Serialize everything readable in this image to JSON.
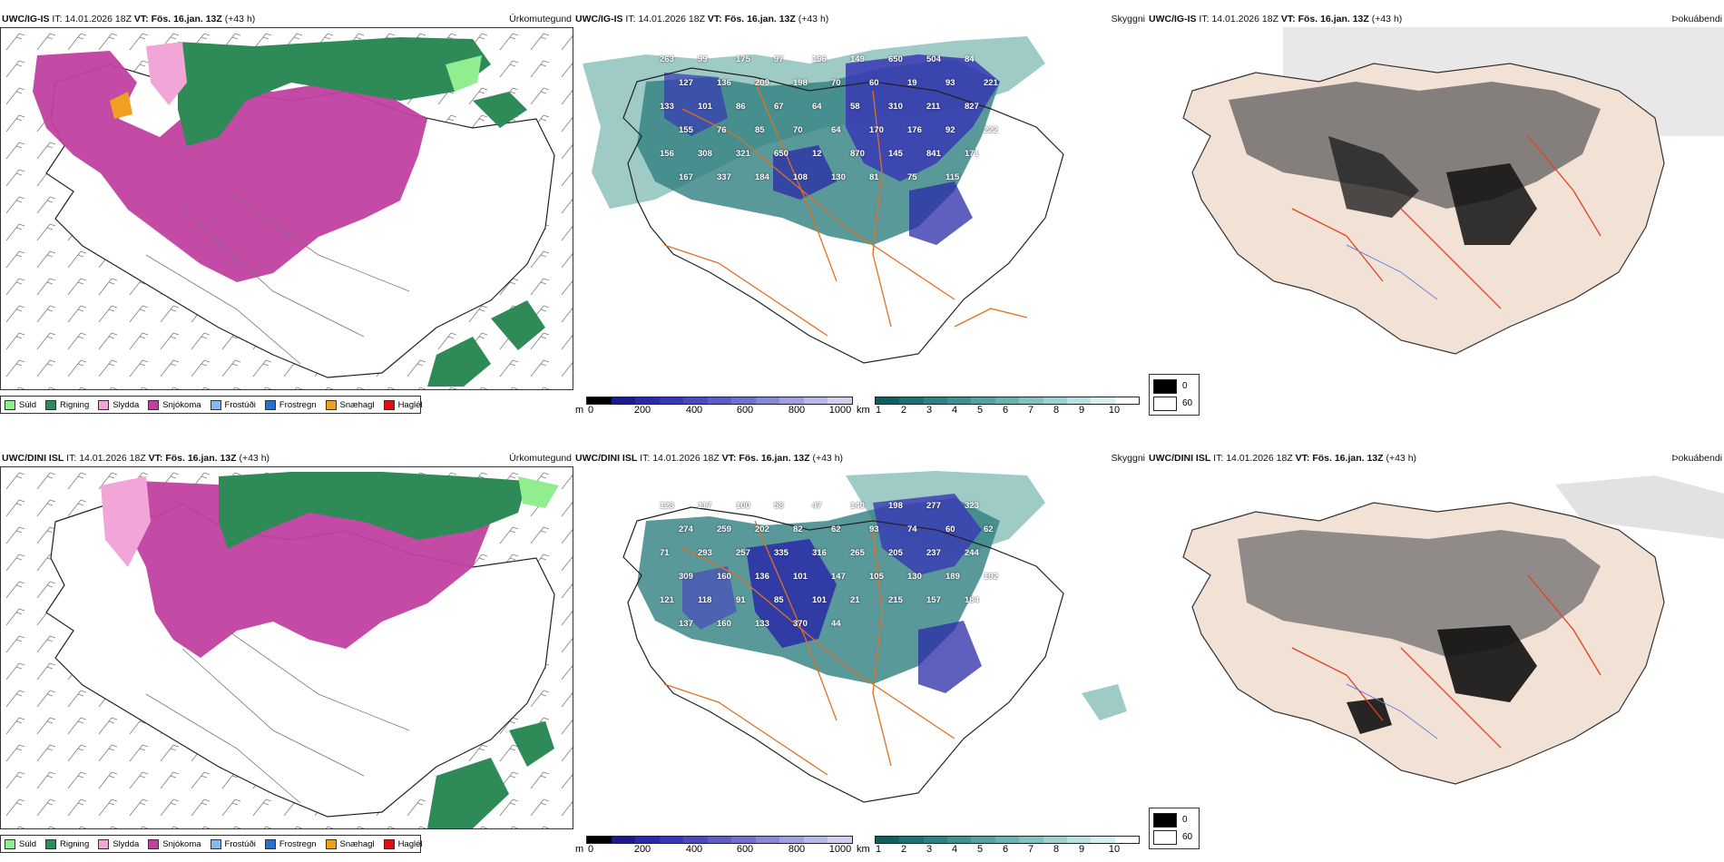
{
  "rows": [
    {
      "model": "UWC/IG-IS",
      "it_label": "IT:",
      "it_value": "14.01.2026 18Z",
      "vt_label": "VT:",
      "vt_value": "Fös. 16.jan. 13Z",
      "lead": "(+43 h)"
    },
    {
      "model": "UWC/DINI ISL",
      "it_label": "IT:",
      "it_value": "14.01.2026 18Z",
      "vt_label": "VT:",
      "vt_value": "Fös. 16.jan. 13Z",
      "lead": "(+43 h)"
    }
  ],
  "panel_titles": {
    "precip_type": "Úrkomutegund",
    "cloud": "Skyggni",
    "fog": "Þokuábendi"
  },
  "precip_legend": [
    {
      "label": "Súld",
      "color": "#90ee90"
    },
    {
      "label": "Rigning",
      "color": "#2e8b57"
    },
    {
      "label": "Slydda",
      "color": "#f2a6d8"
    },
    {
      "label": "Snjókoma",
      "color": "#c040a0"
    },
    {
      "label": "Frostúði",
      "color": "#87b8f0"
    },
    {
      "label": "Frostregn",
      "color": "#2a6fc9"
    },
    {
      "label": "Snæhagl",
      "color": "#f0a020"
    },
    {
      "label": "Haglél",
      "color": "#e01010"
    }
  ],
  "terrain_bar": {
    "unit": "m",
    "ticks": [
      "0",
      "200",
      "400",
      "600",
      "800",
      "1000"
    ],
    "colors": [
      "#000000",
      "#1a1a8c",
      "#2a2aa8",
      "#3838b4",
      "#4a4abc",
      "#5c5cc4",
      "#7070cc",
      "#8888d4",
      "#a0a0dc",
      "#b8b8e4",
      "#d0d0ec"
    ]
  },
  "visibility_bar": {
    "unit": "km",
    "ticks": [
      "1",
      "2",
      "3",
      "4",
      "5",
      "6",
      "7",
      "8",
      "9",
      "10"
    ],
    "colors": [
      "#0f5f5f",
      "#1f7070",
      "#2f8080",
      "#409090",
      "#56a0a0",
      "#6cb0b0",
      "#86c0c0",
      "#a0d0d0",
      "#bce0e0",
      "#d8eeee",
      "#ffffff"
    ]
  },
  "fog_scale": {
    "low": "0",
    "high": "60"
  },
  "map_labels": {
    "top": [
      "263",
      "99",
      "175",
      "97",
      "196",
      "149",
      "650",
      "504",
      "84",
      "127",
      "136",
      "209",
      "198",
      "70",
      "60",
      "19",
      "93",
      "221",
      "133",
      "101",
      "86",
      "67",
      "64",
      "58",
      "310",
      "211",
      "827",
      "155",
      "76",
      "85",
      "70",
      "64",
      "170",
      "176",
      "92",
      "222",
      "156",
      "308",
      "321",
      "650",
      "12",
      "870",
      "145",
      "841",
      "171",
      "167",
      "337",
      "184",
      "108",
      "130",
      "81",
      "75",
      "115"
    ],
    "bottom": [
      "123",
      "117",
      "100",
      "58",
      "47",
      "140",
      "198",
      "277",
      "323",
      "274",
      "259",
      "202",
      "82",
      "62",
      "93",
      "74",
      "60",
      "62",
      "71",
      "293",
      "257",
      "335",
      "316",
      "265",
      "205",
      "237",
      "244",
      "309",
      "160",
      "136",
      "101",
      "147",
      "105",
      "130",
      "189",
      "192",
      "121",
      "118",
      "91",
      "85",
      "101",
      "21",
      "215",
      "157",
      "184",
      "137",
      "160",
      "133",
      "370",
      "44"
    ]
  }
}
